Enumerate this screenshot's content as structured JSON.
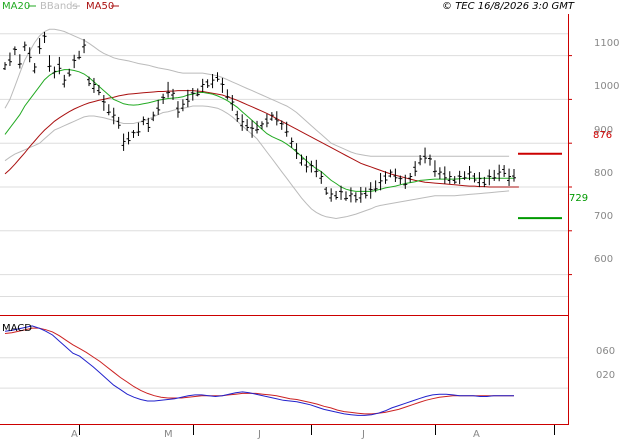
{
  "legend": [
    {
      "label": "MA20",
      "color": "#22aa22"
    },
    {
      "label": "BBands",
      "color": "#bbbbbb"
    },
    {
      "label": "MA50",
      "color": "#aa1111"
    }
  ],
  "copyright": "© TEC 16/8/2026 3:0 GMT",
  "macd_label": "MACD",
  "colors": {
    "price": "#000000",
    "ma20": "#22aa22",
    "ma50": "#aa1111",
    "bbands": "#bbbbbb",
    "macd": "#2222cc",
    "signal": "#cc2222",
    "target_high": "#cc0000",
    "target_low": "#009900",
    "axis": "#cc0000"
  },
  "chart_data": {
    "type": "line",
    "y_ticks": [
      "1100",
      "1000",
      "900",
      "800",
      "700",
      "600"
    ],
    "ylim": [
      510,
      1195
    ],
    "x_ticks": [
      "A",
      "M",
      "J",
      "J",
      "A"
    ],
    "x_tick_index": [
      15,
      38,
      62,
      87,
      111
    ],
    "markers": [
      {
        "label": "876",
        "value": 876,
        "color": "#cc0000"
      },
      {
        "label": "729",
        "value": 729,
        "color": "#009900"
      }
    ],
    "price": [
      1075,
      1090,
      1110,
      1085,
      1120,
      1100,
      1070,
      1120,
      1140,
      1080,
      1060,
      1075,
      1040,
      1060,
      1085,
      1100,
      1120,
      1040,
      1030,
      1020,
      990,
      975,
      960,
      945,
      900,
      910,
      920,
      930,
      950,
      940,
      960,
      980,
      1000,
      1020,
      1010,
      975,
      985,
      1000,
      1010,
      1015,
      1030,
      1035,
      1040,
      1050,
      1030,
      1010,
      990,
      960,
      945,
      940,
      930,
      935,
      940,
      950,
      960,
      955,
      940,
      930,
      900,
      880,
      860,
      850,
      845,
      840,
      820,
      790,
      780,
      780,
      785,
      778,
      780,
      775,
      780,
      785,
      790,
      800,
      810,
      820,
      830,
      825,
      815,
      810,
      820,
      840,
      860,
      870,
      860,
      840,
      830,
      825,
      820,
      815,
      820,
      825,
      830,
      820,
      815,
      810,
      820,
      825,
      830,
      835,
      820,
      825
    ],
    "ma20": [
      920,
      935,
      950,
      965,
      985,
      1000,
      1015,
      1030,
      1045,
      1055,
      1062,
      1065,
      1068,
      1068,
      1066,
      1063,
      1058,
      1050,
      1040,
      1030,
      1020,
      1010,
      1000,
      995,
      990,
      988,
      987,
      988,
      990,
      992,
      995,
      998,
      1000,
      1002,
      1003,
      1004,
      1006,
      1010,
      1012,
      1015,
      1016,
      1014,
      1012,
      1008,
      1003,
      997,
      990,
      982,
      972,
      962,
      952,
      942,
      932,
      922,
      915,
      910,
      905,
      898,
      890,
      880,
      870,
      860,
      850,
      842,
      835,
      825,
      815,
      808,
      800,
      795,
      792,
      790,
      790,
      790,
      790,
      792,
      795,
      798,
      800,
      802,
      805,
      808,
      810,
      812,
      815,
      816,
      817,
      818,
      818,
      818,
      818,
      818,
      819,
      820,
      820,
      820,
      820,
      820,
      820,
      820,
      820,
      820,
      820,
      820
    ],
    "ma50": [
      830,
      840,
      852,
      865,
      878,
      892,
      905,
      918,
      930,
      940,
      950,
      958,
      965,
      972,
      978,
      983,
      988,
      992,
      995,
      998,
      1000,
      1003,
      1005,
      1008,
      1010,
      1012,
      1013,
      1014,
      1015,
      1016,
      1017,
      1018,
      1018,
      1019,
      1019,
      1020,
      1020,
      1020,
      1020,
      1019,
      1018,
      1016,
      1014,
      1012,
      1010,
      1006,
      1002,
      998,
      993,
      988,
      983,
      978,
      973,
      968,
      962,
      956,
      950,
      944,
      938,
      932,
      926,
      920,
      914,
      908,
      902,
      896,
      890,
      884,
      878,
      872,
      866,
      860,
      854,
      850,
      846,
      842,
      838,
      834,
      830,
      827,
      824,
      821,
      818,
      815,
      813,
      811,
      810,
      809,
      808,
      807,
      806,
      805,
      804,
      803,
      802,
      802,
      801,
      801,
      800,
      800,
      800,
      800,
      800,
      800,
      800
    ],
    "bb_upper": [
      980,
      1000,
      1030,
      1060,
      1090,
      1110,
      1130,
      1145,
      1155,
      1160,
      1160,
      1158,
      1155,
      1150,
      1145,
      1140,
      1135,
      1128,
      1120,
      1112,
      1105,
      1100,
      1095,
      1092,
      1090,
      1088,
      1085,
      1082,
      1080,
      1078,
      1075,
      1072,
      1070,
      1068,
      1065,
      1062,
      1060,
      1060,
      1060,
      1060,
      1060,
      1058,
      1056,
      1054,
      1050,
      1045,
      1040,
      1035,
      1030,
      1025,
      1020,
      1015,
      1010,
      1005,
      1000,
      995,
      990,
      985,
      978,
      970,
      960,
      950,
      940,
      930,
      920,
      910,
      900,
      895,
      890,
      885,
      880,
      876,
      874,
      872,
      870,
      870,
      870,
      870,
      870,
      870,
      870,
      870,
      870,
      870,
      870,
      870,
      870,
      870,
      870,
      870,
      870,
      870,
      870,
      870,
      870,
      870,
      870,
      870,
      870,
      870,
      870,
      870,
      870
    ],
    "bb_lower": [
      860,
      868,
      875,
      880,
      885,
      890,
      895,
      900,
      910,
      920,
      930,
      935,
      940,
      945,
      950,
      955,
      960,
      962,
      962,
      960,
      958,
      955,
      952,
      948,
      945,
      945,
      945,
      948,
      950,
      955,
      960,
      965,
      970,
      972,
      975,
      978,
      980,
      982,
      985,
      985,
      985,
      984,
      982,
      980,
      975,
      968,
      960,
      950,
      940,
      930,
      920,
      910,
      895,
      880,
      865,
      850,
      835,
      820,
      805,
      790,
      775,
      762,
      750,
      742,
      736,
      732,
      730,
      728,
      730,
      732,
      735,
      738,
      742,
      746,
      750,
      755,
      758,
      760,
      762,
      764,
      766,
      768,
      770,
      772,
      774,
      776,
      778,
      780,
      780,
      780,
      780,
      780,
      781,
      782,
      783,
      784,
      785,
      786,
      787,
      788,
      789,
      790,
      791
    ],
    "macd": [
      95,
      96,
      98,
      100,
      102,
      99,
      95,
      90,
      82,
      74,
      66,
      62,
      55,
      48,
      40,
      32,
      24,
      18,
      12,
      8,
      5,
      3,
      3,
      4,
      5,
      6,
      8,
      10,
      11,
      11,
      10,
      9,
      10,
      12,
      14,
      15,
      14,
      12,
      10,
      8,
      6,
      4,
      3,
      2,
      0,
      -2,
      -5,
      -8,
      -10,
      -12,
      -14,
      -15,
      -16,
      -16,
      -15,
      -13,
      -10,
      -6,
      -3,
      0,
      3,
      6,
      9,
      11,
      12,
      12,
      11,
      10,
      10,
      10,
      9,
      9,
      10,
      10,
      10,
      10
    ],
    "signal": [
      92,
      93,
      95,
      97,
      99,
      99,
      97,
      94,
      89,
      83,
      77,
      72,
      67,
      61,
      55,
      48,
      41,
      34,
      28,
      22,
      17,
      13,
      10,
      8,
      7,
      7,
      7,
      8,
      9,
      10,
      10,
      10,
      10,
      11,
      12,
      13,
      13,
      13,
      12,
      11,
      10,
      8,
      6,
      5,
      3,
      1,
      -1,
      -4,
      -6,
      -9,
      -11,
      -12,
      -13,
      -14,
      -14,
      -13,
      -12,
      -10,
      -8,
      -5,
      -2,
      1,
      4,
      6,
      8,
      9,
      10,
      10,
      10,
      10,
      10,
      10,
      10,
      10,
      10,
      10
    ],
    "macd_ticks": [
      "060",
      "020"
    ],
    "macd_ylim": [
      -22,
      115
    ]
  }
}
